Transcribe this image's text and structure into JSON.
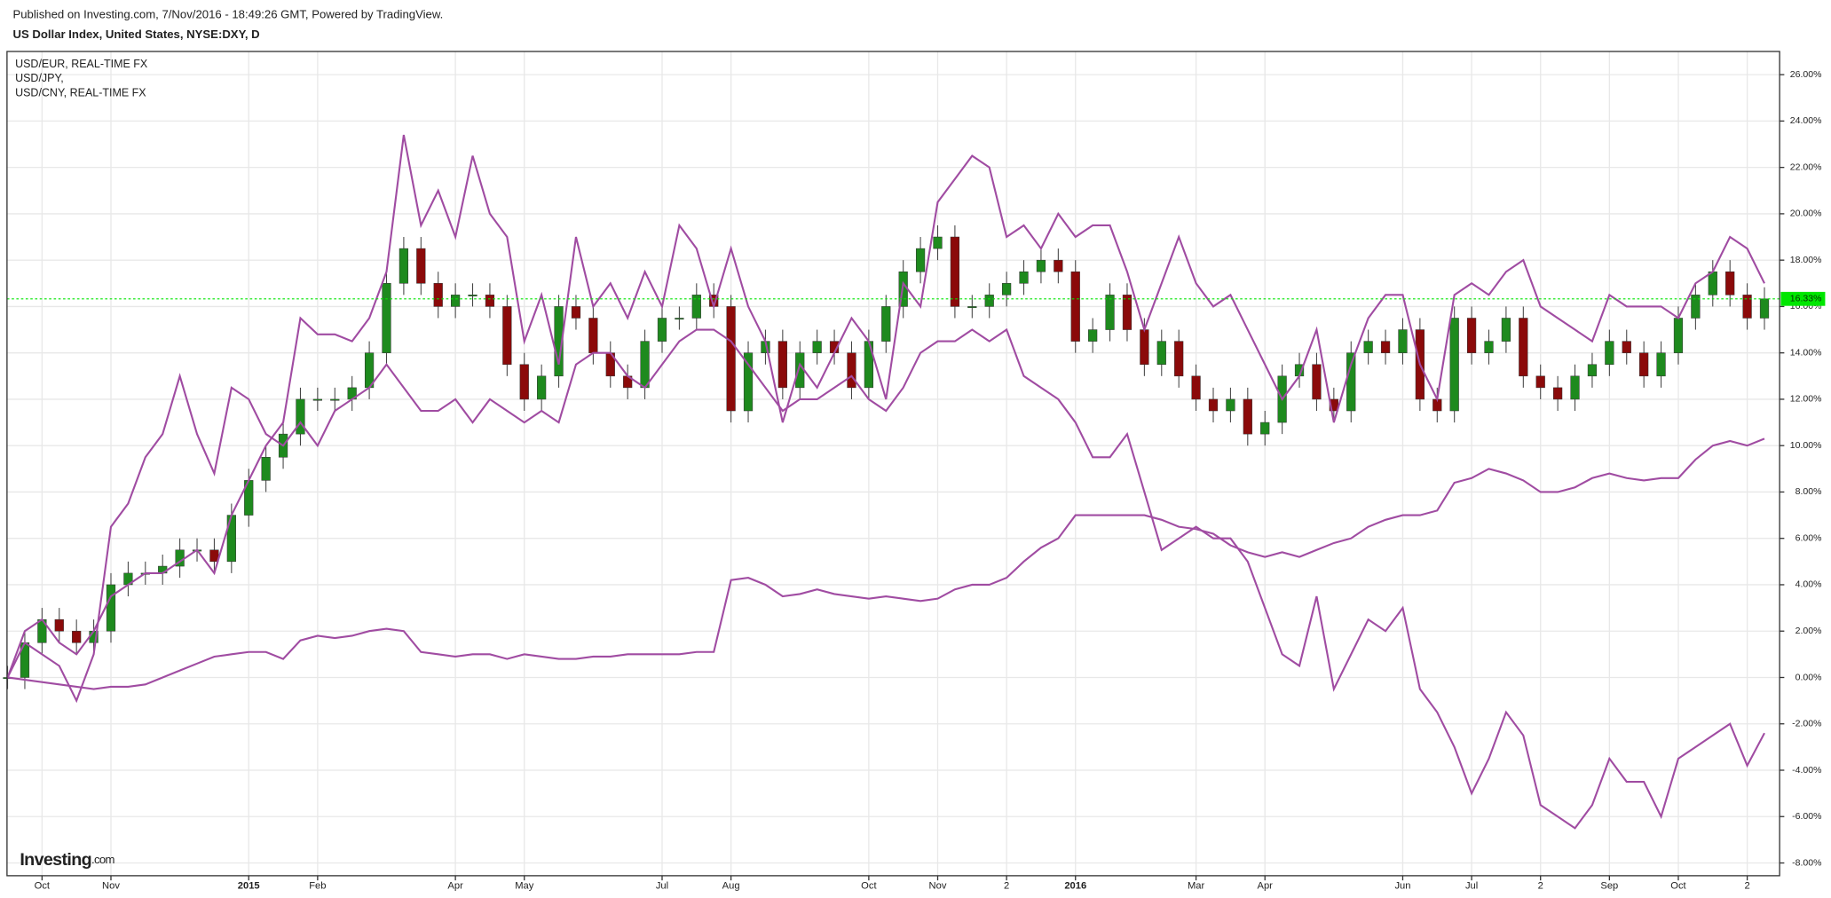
{
  "header": "Published on Investing.com, 7/Nov/2016 - 18:49:26 GMT, Powered by TradingView.",
  "logo": {
    "brand": "Investing",
    "suffix": ".com"
  },
  "chart_data": {
    "type": "candlestick",
    "title": "US Dollar Index, United States, NYSE:DXY, D",
    "categories": [
      null,
      null,
      "Oct",
      null,
      null,
      null,
      "Nov",
      null,
      null,
      null,
      null,
      null,
      null,
      null,
      "2015",
      null,
      null,
      null,
      "Feb",
      null,
      null,
      null,
      null,
      null,
      null,
      null,
      "Apr",
      null,
      null,
      null,
      "May",
      null,
      null,
      null,
      null,
      null,
      null,
      null,
      "Jul",
      null,
      null,
      null,
      "Aug",
      null,
      null,
      null,
      null,
      null,
      null,
      null,
      "Oct",
      null,
      null,
      null,
      "Nov",
      null,
      null,
      null,
      "2",
      null,
      null,
      null,
      "2016",
      null,
      null,
      null,
      null,
      null,
      null,
      "Mar",
      null,
      null,
      null,
      "Apr",
      null,
      null,
      null,
      null,
      null,
      null,
      null,
      "Jun",
      null,
      null,
      null,
      "Jul",
      null,
      null,
      null,
      "2",
      null,
      null,
      null,
      "Sep",
      null,
      null,
      null,
      "Oct",
      null,
      null,
      null,
      "2",
      null
    ],
    "ohlc": {
      "up_color": "#1e8a1e",
      "down_color": "#8b0a0a",
      "open": [
        0,
        0,
        1.5,
        2.5,
        2,
        1.5,
        2,
        4,
        4.5,
        4.5,
        4.8,
        5.5,
        5.5,
        5,
        7,
        8.5,
        9.5,
        10.5,
        12,
        12,
        12,
        12.5,
        14,
        17,
        18.5,
        17,
        16,
        16.5,
        16.5,
        16,
        13.5,
        12,
        13,
        16,
        15.5,
        14,
        13,
        12.5,
        14.5,
        15.5,
        15.5,
        16.5,
        16,
        11.5,
        14,
        14.5,
        12.5,
        14,
        14.5,
        14,
        12.5,
        14.5,
        16,
        17.5,
        18.5,
        19,
        16,
        16,
        16.5,
        17,
        17.5,
        18,
        17.5,
        14.5,
        15,
        16.5,
        15,
        13.5,
        14.5,
        13,
        12,
        11.5,
        12,
        10.5,
        11,
        13,
        13.5,
        12,
        11.5,
        14,
        14.5,
        14,
        15,
        12,
        11.5,
        15.5,
        14,
        14.5,
        15.5,
        13,
        12.5,
        12,
        13,
        13.5,
        14.5,
        14,
        13,
        14,
        15.5,
        16.5,
        17.5,
        16.5,
        15.5
      ],
      "high": [
        0.5,
        2,
        3,
        3,
        2.5,
        2.5,
        4.5,
        5,
        5,
        5.3,
        6,
        6,
        6,
        7.5,
        9,
        10,
        11,
        12.5,
        12.5,
        12.5,
        13,
        14.5,
        17.5,
        19,
        19,
        17.5,
        17,
        17,
        17,
        16.5,
        14,
        13.5,
        16.5,
        16.5,
        16,
        14.5,
        13.5,
        15,
        16,
        16,
        17,
        17,
        16.5,
        14.5,
        15,
        15,
        14.5,
        15,
        15,
        14.5,
        15,
        16.5,
        18,
        19,
        19.5,
        19.5,
        16.5,
        17,
        17.5,
        18,
        18.5,
        18.5,
        18,
        15.5,
        17,
        17,
        15.5,
        15,
        15,
        13.5,
        12.5,
        12.5,
        12.5,
        11.5,
        13.5,
        14,
        14,
        12.5,
        14.5,
        15,
        15,
        15.5,
        15.5,
        12.5,
        16,
        16,
        15,
        16,
        16,
        13.5,
        13,
        13.5,
        14,
        15,
        15,
        14.5,
        14.5,
        16,
        17,
        18,
        18,
        17,
        16.83
      ],
      "low": [
        -0.5,
        -0.5,
        1,
        1.5,
        1,
        1,
        1.5,
        3.5,
        4,
        4,
        4.3,
        5,
        4.5,
        4.5,
        6.5,
        8,
        9,
        10,
        11.5,
        11.5,
        11.5,
        12,
        13.5,
        16.5,
        16.5,
        15.5,
        15.5,
        16,
        15.5,
        13,
        11.5,
        11.5,
        12.5,
        15,
        13.5,
        12.5,
        12,
        12,
        14,
        15,
        15,
        15.5,
        11,
        11,
        13.5,
        12,
        12,
        13.5,
        13.5,
        12,
        12,
        14,
        15.5,
        17,
        18,
        15.5,
        15.5,
        15.5,
        16,
        16.5,
        17,
        17,
        14,
        14,
        14.5,
        14.5,
        13,
        13,
        12.5,
        11.5,
        11,
        11,
        10,
        10,
        10.5,
        12.5,
        11.5,
        11,
        11,
        13.5,
        13.5,
        13.5,
        11.5,
        11,
        11,
        13.5,
        13.5,
        14,
        12.5,
        12,
        11.5,
        11.5,
        12.5,
        13,
        13.5,
        12.5,
        12.5,
        13.5,
        15,
        16,
        16,
        15,
        15
      ],
      "close": [
        0,
        1.5,
        2.5,
        2,
        1.5,
        2,
        4,
        4.5,
        4.5,
        4.8,
        5.5,
        5.5,
        5,
        7,
        8.5,
        9.5,
        10.5,
        12,
        12,
        12,
        12.5,
        14,
        17,
        18.5,
        17,
        16,
        16.5,
        16.5,
        16,
        13.5,
        12,
        13,
        16,
        15.5,
        14,
        13,
        12.5,
        14.5,
        15.5,
        15.5,
        16.5,
        16,
        11.5,
        14,
        14.5,
        12.5,
        14,
        14.5,
        14,
        12.5,
        14.5,
        16,
        17.5,
        18.5,
        19,
        16,
        16,
        16.5,
        17,
        17.5,
        18,
        17.5,
        14.5,
        15,
        16.5,
        15,
        13.5,
        14.5,
        13,
        12,
        11.5,
        12,
        10.5,
        11,
        13,
        13.5,
        12,
        11.5,
        14,
        14.5,
        14,
        15,
        12,
        11.5,
        15.5,
        14,
        14.5,
        15.5,
        13,
        12.5,
        12,
        13,
        13.5,
        14.5,
        14,
        13,
        14,
        15.5,
        16.5,
        17.5,
        16.5,
        15.5,
        16.33
      ]
    },
    "last_price": {
      "value": 16.33,
      "label": "16.33%",
      "color": "#00e600"
    },
    "series": [
      {
        "name": "USD/EUR, REAL-TIME FX",
        "color": "#a04ca2",
        "values": [
          0,
          2,
          2.5,
          1.5,
          1,
          2,
          3.5,
          4,
          4.5,
          4.5,
          5,
          5.5,
          4.5,
          7,
          8.5,
          10,
          11,
          15.5,
          14.8,
          14.8,
          14.5,
          15.5,
          17.5,
          23.4,
          19.5,
          21,
          19,
          22.5,
          20,
          19,
          14.5,
          16.5,
          13.5,
          19,
          16,
          17,
          15.5,
          17.5,
          16,
          19.5,
          18.5,
          16,
          18.5,
          16,
          14.5,
          11,
          13.5,
          12.5,
          14,
          15.5,
          14.5,
          12,
          17,
          16,
          20.5,
          21.5,
          22.5,
          22,
          19,
          19.5,
          18.5,
          20,
          19,
          19.5,
          19.5,
          17.5,
          15,
          17,
          19,
          17,
          16,
          16.5,
          15,
          13.5,
          12,
          13,
          15,
          11,
          13.5,
          15.5,
          16.5,
          16.5,
          13.5,
          12,
          16.5,
          17,
          16.5,
          17.5,
          18,
          16,
          15.5,
          15,
          14.5,
          16.5,
          16,
          16,
          16,
          15.5,
          17,
          17.5,
          19,
          18.5,
          17
        ]
      },
      {
        "name": "USD/JPY,",
        "color": "#a04ca2",
        "values": [
          0,
          1.5,
          1,
          0.5,
          -1,
          1,
          6.5,
          7.5,
          9.5,
          10.5,
          13,
          10.5,
          8.8,
          12.5,
          12,
          10.5,
          10,
          11,
          10,
          11.5,
          12,
          12.5,
          13.5,
          12.5,
          11.5,
          11.5,
          12,
          11,
          12,
          11.5,
          11,
          11.5,
          11,
          13.5,
          14,
          14,
          13,
          12.5,
          13.5,
          14.5,
          15,
          15,
          14.5,
          13.5,
          12.5,
          11.5,
          12,
          12,
          12.5,
          13,
          12,
          11.5,
          12.5,
          14,
          14.5,
          14.5,
          15,
          14.5,
          15,
          13,
          12.5,
          12,
          11,
          9.5,
          9.5,
          10.5,
          8,
          5.5,
          6,
          6.5,
          6,
          6,
          5,
          3,
          1,
          0.5,
          3.5,
          -0.5,
          1,
          2.5,
          2,
          3,
          -0.5,
          -1.5,
          -3,
          -5,
          -3.5,
          -1.5,
          -2.5,
          -5.5,
          -6,
          -6.5,
          -5.5,
          -3.5,
          -4.5,
          -4.5,
          -6,
          -3.5,
          -3,
          -2.5,
          -2,
          -3.8,
          -2.4
        ]
      },
      {
        "name": "USD/CNY, REAL-TIME FX",
        "color": "#a04ca2",
        "values": [
          0,
          -0.1,
          -0.2,
          -0.3,
          -0.4,
          -0.5,
          -0.4,
          -0.4,
          -0.3,
          0,
          0.3,
          0.6,
          0.9,
          1,
          1.1,
          1.1,
          0.8,
          1.6,
          1.8,
          1.7,
          1.8,
          2,
          2.1,
          2,
          1.1,
          1,
          0.9,
          1,
          1,
          0.8,
          1,
          0.9,
          0.8,
          0.8,
          0.9,
          0.9,
          1,
          1,
          1,
          1,
          1.1,
          1.1,
          4.2,
          4.3,
          4,
          3.5,
          3.6,
          3.8,
          3.6,
          3.5,
          3.4,
          3.5,
          3.4,
          3.3,
          3.4,
          3.8,
          4,
          4,
          4.3,
          5,
          5.6,
          6,
          7,
          7,
          7,
          7,
          7,
          6.8,
          6.5,
          6.4,
          6.2,
          5.7,
          5.4,
          5.2,
          5.4,
          5.2,
          5.5,
          5.8,
          6,
          6.5,
          6.8,
          7,
          7,
          7.2,
          8.4,
          8.6,
          9,
          8.8,
          8.5,
          8,
          8,
          8.2,
          8.6,
          8.8,
          8.6,
          8.5,
          8.6,
          8.6,
          9.4,
          10,
          10.2,
          10,
          10.3
        ]
      }
    ],
    "ylim": [
      -8.55,
      27.0
    ],
    "yticks": [
      {
        "value": -8,
        "label": "-8.00%"
      },
      {
        "value": -6,
        "label": "-6.00%"
      },
      {
        "value": -4,
        "label": "-4.00%"
      },
      {
        "value": -2,
        "label": "-2.00%"
      },
      {
        "value": 0,
        "label": "0.00%"
      },
      {
        "value": 2,
        "label": "2.00%"
      },
      {
        "value": 4,
        "label": "4.00%"
      },
      {
        "value": 6,
        "label": "6.00%"
      },
      {
        "value": 8,
        "label": "8.00%"
      },
      {
        "value": 10,
        "label": "10.00%"
      },
      {
        "value": 12,
        "label": "12.00%"
      },
      {
        "value": 14,
        "label": "14.00%"
      },
      {
        "value": 16,
        "label": "16.00%"
      },
      {
        "value": 18,
        "label": "18.00%"
      },
      {
        "value": 20,
        "label": "20.00%"
      },
      {
        "value": 22,
        "label": "22.00%"
      },
      {
        "value": 24,
        "label": "24.00%"
      },
      {
        "value": 26,
        "label": "26.00%"
      }
    ],
    "grid": true
  }
}
